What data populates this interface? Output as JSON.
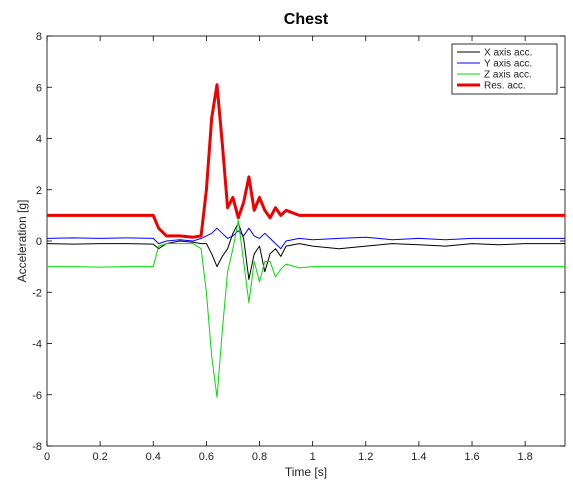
{
  "chart_data": {
    "type": "line",
    "title": "Chest",
    "xlabel": "Time [s]",
    "ylabel": "Acceleration [g]",
    "xlim": [
      0,
      1.95
    ],
    "ylim": [
      -8,
      8
    ],
    "xticks": [
      0,
      0.2,
      0.4,
      0.6,
      0.8,
      1,
      1.2,
      1.4,
      1.6,
      1.8
    ],
    "xtick_labels": [
      "0",
      "0.2",
      "0.4",
      "0.6",
      "0.8",
      "1",
      "1.2",
      "1.4",
      "1.6",
      "1.8"
    ],
    "yticks": [
      -8,
      -6,
      -4,
      -2,
      0,
      2,
      4,
      6,
      8
    ],
    "ytick_labels": [
      "-8",
      "-6",
      "-4",
      "-2",
      "0",
      "2",
      "4",
      "6",
      "8"
    ],
    "grid": false,
    "legend_position": "top-right",
    "series": [
      {
        "name": "X axis acc.",
        "color": "#000000",
        "width": 1,
        "x": [
          0,
          0.1,
          0.2,
          0.3,
          0.4,
          0.42,
          0.45,
          0.5,
          0.55,
          0.58,
          0.6,
          0.62,
          0.64,
          0.66,
          0.68,
          0.7,
          0.72,
          0.74,
          0.76,
          0.78,
          0.8,
          0.82,
          0.84,
          0.86,
          0.88,
          0.9,
          0.95,
          1.0,
          1.1,
          1.2,
          1.3,
          1.4,
          1.5,
          1.6,
          1.7,
          1.8,
          1.9,
          1.95
        ],
        "y": [
          -0.1,
          -0.12,
          -0.1,
          -0.1,
          -0.12,
          -0.3,
          -0.1,
          0.0,
          -0.05,
          -0.1,
          -0.1,
          -0.5,
          -1.0,
          -0.6,
          -0.3,
          0.3,
          0.7,
          0.1,
          -1.5,
          -0.5,
          -0.2,
          -1.2,
          -0.5,
          -0.3,
          -0.6,
          -0.2,
          -0.1,
          -0.2,
          -0.3,
          -0.2,
          -0.1,
          -0.15,
          -0.2,
          -0.1,
          -0.15,
          -0.1,
          -0.1,
          -0.1
        ]
      },
      {
        "name": "Y axis acc.",
        "color": "#0000ff",
        "width": 1,
        "x": [
          0,
          0.1,
          0.2,
          0.3,
          0.4,
          0.42,
          0.45,
          0.5,
          0.55,
          0.58,
          0.6,
          0.62,
          0.64,
          0.66,
          0.68,
          0.7,
          0.72,
          0.74,
          0.76,
          0.78,
          0.8,
          0.82,
          0.84,
          0.86,
          0.88,
          0.9,
          0.95,
          1.0,
          1.1,
          1.2,
          1.3,
          1.4,
          1.5,
          1.6,
          1.7,
          1.8,
          1.9,
          1.95
        ],
        "y": [
          0.1,
          0.12,
          0.1,
          0.12,
          0.1,
          -0.1,
          0.0,
          0.05,
          0.0,
          0.1,
          0.2,
          0.3,
          0.5,
          0.3,
          0.1,
          0.2,
          0.4,
          0.2,
          0.5,
          0.2,
          0.1,
          0.3,
          0.1,
          -0.1,
          -0.3,
          0.0,
          0.1,
          0.05,
          0.1,
          0.15,
          0.05,
          0.1,
          0.05,
          0.1,
          0.1,
          0.1,
          0.1,
          0.1
        ]
      },
      {
        "name": "Z axis acc.",
        "color": "#00dd00",
        "width": 1,
        "x": [
          0,
          0.1,
          0.2,
          0.3,
          0.4,
          0.42,
          0.45,
          0.5,
          0.55,
          0.58,
          0.6,
          0.62,
          0.64,
          0.66,
          0.68,
          0.7,
          0.72,
          0.74,
          0.76,
          0.78,
          0.8,
          0.82,
          0.84,
          0.86,
          0.88,
          0.9,
          0.95,
          1.0,
          1.1,
          1.2,
          1.3,
          1.4,
          1.5,
          1.6,
          1.7,
          1.8,
          1.9,
          1.95
        ],
        "y": [
          -1.0,
          -1.0,
          -1.02,
          -1.0,
          -1.0,
          -0.2,
          -0.1,
          -0.1,
          -0.1,
          -0.3,
          -2.0,
          -4.5,
          -6.1,
          -3.5,
          -1.2,
          -0.3,
          0.8,
          -0.8,
          -2.4,
          -0.8,
          -1.6,
          -0.8,
          -0.8,
          -1.4,
          -1.1,
          -0.9,
          -1.05,
          -1.0,
          -1.0,
          -1.0,
          -1.0,
          -1.0,
          -1.0,
          -1.0,
          -1.0,
          -1.0,
          -1.0,
          -1.0
        ]
      },
      {
        "name": "Res. acc.",
        "color": "#ee0000",
        "width": 3,
        "x": [
          0,
          0.1,
          0.2,
          0.3,
          0.4,
          0.42,
          0.45,
          0.5,
          0.55,
          0.58,
          0.6,
          0.62,
          0.64,
          0.66,
          0.68,
          0.7,
          0.72,
          0.74,
          0.76,
          0.78,
          0.8,
          0.82,
          0.84,
          0.86,
          0.88,
          0.9,
          0.95,
          1.0,
          1.1,
          1.2,
          1.3,
          1.4,
          1.5,
          1.6,
          1.7,
          1.8,
          1.9,
          1.95
        ],
        "y": [
          1.0,
          1.0,
          1.0,
          1.0,
          1.0,
          0.5,
          0.2,
          0.2,
          0.15,
          0.2,
          2.0,
          4.8,
          6.1,
          3.8,
          1.3,
          1.7,
          0.9,
          1.5,
          2.5,
          1.2,
          1.7,
          1.2,
          0.9,
          1.3,
          1.0,
          1.2,
          1.0,
          1.0,
          1.0,
          1.0,
          1.0,
          1.0,
          1.0,
          1.0,
          1.0,
          1.0,
          1.0,
          1.0
        ]
      }
    ]
  }
}
